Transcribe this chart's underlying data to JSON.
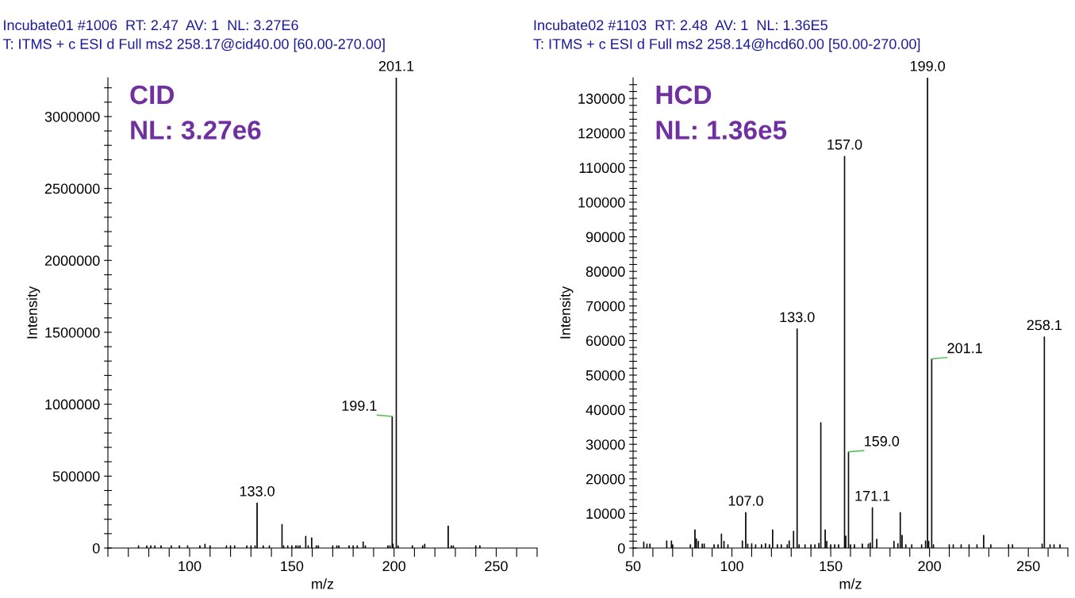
{
  "chart_data": [
    {
      "type": "bar",
      "title": "Incubate01 #1006  RT: 2.47  AV: 1  NL: 3.27E6",
      "subtitle": "T: ITMS + c ESI d Full ms2 258.17@cid40.00 [60.00-270.00]",
      "xlabel": "m/z",
      "ylabel": "Intensity",
      "annotations": [
        "CID",
        "NL: 3.27e6",
        {
          "text": "133.0",
          "x": 133.0,
          "y": 314000
        },
        {
          "text": "199.1",
          "x": 199.1,
          "y": 915000
        },
        {
          "text": "201.1",
          "x": 201.1,
          "y": 3270000
        }
      ],
      "x": [
        75,
        79,
        81,
        83,
        86,
        91,
        95,
        99,
        105,
        107.5,
        110,
        118,
        120,
        122,
        128,
        130,
        132,
        133.0,
        136,
        139,
        145.2,
        146,
        148,
        150,
        152,
        153,
        154,
        156.8,
        158,
        159.7,
        162,
        163,
        170,
        172,
        173,
        178,
        180,
        182,
        184.9,
        186,
        197,
        198,
        199.1,
        199.5,
        201.1,
        202,
        209,
        214,
        215,
        226.5,
        228,
        229,
        240,
        242
      ],
      "series": [
        {
          "color": "#000000",
          "values": [
            17000,
            17000,
            17000,
            17000,
            17000,
            17000,
            17000,
            17000,
            17000,
            28000,
            17000,
            17000,
            17000,
            17000,
            17000,
            17000,
            17000,
            314000,
            17000,
            17000,
            165000,
            17000,
            17000,
            17000,
            17000,
            17000,
            17000,
            83000,
            17000,
            72000,
            17000,
            17000,
            17000,
            17000,
            17000,
            17000,
            17000,
            17000,
            44000,
            17000,
            17000,
            17000,
            915000,
            28000,
            3270000,
            17000,
            17000,
            17000,
            28000,
            154000,
            17000,
            17000,
            17000,
            17000
          ],
          "name": null
        }
      ],
      "xlim": [
        60,
        270
      ],
      "xticks": [
        {
          "value": 60,
          "label": null
        },
        {
          "value": 70,
          "label": null
        },
        {
          "value": 80,
          "label": null
        },
        {
          "value": 90,
          "label": null
        },
        100,
        {
          "value": 110,
          "label": null
        },
        {
          "value": 120,
          "label": null
        },
        {
          "value": 130,
          "label": null
        },
        {
          "value": 140,
          "label": null
        },
        150,
        {
          "value": 160,
          "label": null
        },
        {
          "value": 170,
          "label": null
        },
        {
          "value": 180,
          "label": null
        },
        {
          "value": 190,
          "label": null
        },
        200,
        {
          "value": 210,
          "label": null
        },
        {
          "value": 220,
          "label": null
        },
        {
          "value": 230,
          "label": null
        },
        {
          "value": 240,
          "label": null
        },
        250,
        {
          "value": 260,
          "label": null
        },
        {
          "value": 270,
          "label": null
        }
      ],
      "ylim": [
        0,
        3270000
      ],
      "yticks": [
        0,
        {
          "value": 100000,
          "label": null
        },
        {
          "value": 200000,
          "label": null
        },
        {
          "value": 300000,
          "label": null
        },
        {
          "value": 400000,
          "label": null
        },
        500000,
        {
          "value": 600000,
          "label": null
        },
        {
          "value": 700000,
          "label": null
        },
        {
          "value": 800000,
          "label": null
        },
        {
          "value": 900000,
          "label": null
        },
        1000000,
        {
          "value": 1100000,
          "label": null
        },
        {
          "value": 1200000,
          "label": null
        },
        {
          "value": 1300000,
          "label": null
        },
        {
          "value": 1400000,
          "label": null
        },
        1500000,
        {
          "value": 1600000,
          "label": null
        },
        {
          "value": 1700000,
          "label": null
        },
        {
          "value": 1800000,
          "label": null
        },
        {
          "value": 1900000,
          "label": null
        },
        2000000,
        {
          "value": 2100000,
          "label": null
        },
        {
          "value": 2200000,
          "label": null
        },
        {
          "value": 2300000,
          "label": null
        },
        {
          "value": 2400000,
          "label": null
        },
        2500000,
        {
          "value": 2600000,
          "label": null
        },
        {
          "value": 2700000,
          "label": null
        },
        {
          "value": 2800000,
          "label": null
        },
        {
          "value": 2900000,
          "label": null
        },
        3000000,
        {
          "value": 3100000,
          "label": null
        },
        {
          "value": 3200000,
          "label": null
        }
      ],
      "grid": false,
      "legend": false
    },
    {
      "type": "bar",
      "title": "Incubate02 #1103  RT: 2.48  AV: 1  NL: 1.36E5",
      "subtitle": "T: ITMS + c ESI d Full ms2 258.14@hcd60.00 [50.00-270.00]",
      "xlabel": "m/z",
      "ylabel": "Intensity",
      "annotations": [
        "HCD",
        "NL: 1.36e5",
        {
          "text": "107.0",
          "x": 107.0,
          "y": 10300
        },
        {
          "text": "133.0",
          "x": 133.0,
          "y": 63400
        },
        {
          "text": "157.0",
          "x": 157.0,
          "y": 113300
        },
        {
          "text": "159.0",
          "x": 159.0,
          "y": 27800
        },
        {
          "text": "171.1",
          "x": 171.1,
          "y": 11700
        },
        {
          "text": "199.0",
          "x": 199.0,
          "y": 136000
        },
        {
          "text": "201.1",
          "x": 201.1,
          "y": 54700
        },
        {
          "text": "258.1",
          "x": 258.1,
          "y": 61100
        }
      ],
      "x": [
        55.4,
        57,
        58.5,
        67,
        69.4,
        70,
        79,
        81.3,
        82,
        83,
        85,
        86,
        91,
        93,
        94.7,
        96,
        98,
        105.3,
        107.0,
        108,
        110,
        112,
        115,
        117,
        119,
        120.6,
        123,
        125,
        128,
        129,
        131.2,
        133.0,
        134,
        137,
        140,
        142,
        144,
        145,
        147.2,
        148,
        150,
        152,
        154,
        157.0,
        157.6,
        159.0,
        160,
        162,
        166,
        169,
        170,
        171.1,
        173.3,
        182,
        184,
        185.2,
        186.1,
        188,
        191,
        196,
        198,
        199.0,
        199.6,
        201.1,
        202,
        210,
        212,
        216,
        220,
        224,
        227.4,
        231,
        240,
        242,
        257,
        258.1,
        261,
        263,
        266
      ],
      "series": [
        {
          "color": "#000000",
          "values": [
            1800,
            1200,
            1200,
            2100,
            2100,
            1000,
            1000,
            5300,
            2700,
            2000,
            1200,
            1200,
            1000,
            1000,
            4100,
            2000,
            1000,
            2100,
            10300,
            1200,
            1300,
            1000,
            1000,
            1300,
            1000,
            5300,
            1000,
            1000,
            1000,
            2100,
            4900,
            63400,
            1000,
            1000,
            1000,
            1000,
            1400,
            36300,
            5300,
            2000,
            1000,
            1000,
            1000,
            113300,
            3500,
            27800,
            1000,
            1000,
            1200,
            1200,
            1500,
            11700,
            2600,
            2000,
            1300,
            10300,
            3700,
            1000,
            1000,
            1000,
            2100,
            136000,
            2000,
            54700,
            1000,
            1000,
            1000,
            1000,
            1000,
            1000,
            3700,
            1000,
            1000,
            1000,
            1200,
            61100,
            1000,
            1000,
            1000
          ],
          "name": null
        }
      ],
      "xlim": [
        50,
        270
      ],
      "xticks": [
        50,
        {
          "value": 60,
          "label": null
        },
        {
          "value": 70,
          "label": null
        },
        {
          "value": 80,
          "label": null
        },
        {
          "value": 90,
          "label": null
        },
        100,
        {
          "value": 110,
          "label": null
        },
        {
          "value": 120,
          "label": null
        },
        {
          "value": 130,
          "label": null
        },
        {
          "value": 140,
          "label": null
        },
        150,
        {
          "value": 160,
          "label": null
        },
        {
          "value": 170,
          "label": null
        },
        {
          "value": 180,
          "label": null
        },
        {
          "value": 190,
          "label": null
        },
        200,
        {
          "value": 210,
          "label": null
        },
        {
          "value": 220,
          "label": null
        },
        {
          "value": 230,
          "label": null
        },
        {
          "value": 240,
          "label": null
        },
        250,
        {
          "value": 260,
          "label": null
        },
        {
          "value": 270,
          "label": null
        }
      ],
      "ylim": [
        0,
        136000
      ],
      "yticks": [
        0,
        {
          "value": 2000,
          "label": null
        },
        {
          "value": 4000,
          "label": null
        },
        {
          "value": 6000,
          "label": null
        },
        {
          "value": 8000,
          "label": null
        },
        10000,
        {
          "value": 12000,
          "label": null
        },
        {
          "value": 14000,
          "label": null
        },
        {
          "value": 16000,
          "label": null
        },
        {
          "value": 18000,
          "label": null
        },
        20000,
        {
          "value": 22000,
          "label": null
        },
        {
          "value": 24000,
          "label": null
        },
        {
          "value": 26000,
          "label": null
        },
        {
          "value": 28000,
          "label": null
        },
        30000,
        {
          "value": 32000,
          "label": null
        },
        {
          "value": 34000,
          "label": null
        },
        {
          "value": 36000,
          "label": null
        },
        {
          "value": 38000,
          "label": null
        },
        40000,
        {
          "value": 42000,
          "label": null
        },
        {
          "value": 44000,
          "label": null
        },
        {
          "value": 46000,
          "label": null
        },
        {
          "value": 48000,
          "label": null
        },
        50000,
        {
          "value": 52000,
          "label": null
        },
        {
          "value": 54000,
          "label": null
        },
        {
          "value": 56000,
          "label": null
        },
        {
          "value": 58000,
          "label": null
        },
        60000,
        {
          "value": 62000,
          "label": null
        },
        {
          "value": 64000,
          "label": null
        },
        {
          "value": 66000,
          "label": null
        },
        {
          "value": 68000,
          "label": null
        },
        70000,
        {
          "value": 72000,
          "label": null
        },
        {
          "value": 74000,
          "label": null
        },
        {
          "value": 76000,
          "label": null
        },
        {
          "value": 78000,
          "label": null
        },
        80000,
        {
          "value": 82000,
          "label": null
        },
        {
          "value": 84000,
          "label": null
        },
        {
          "value": 86000,
          "label": null
        },
        {
          "value": 88000,
          "label": null
        },
        90000,
        {
          "value": 92000,
          "label": null
        },
        {
          "value": 94000,
          "label": null
        },
        {
          "value": 96000,
          "label": null
        },
        {
          "value": 98000,
          "label": null
        },
        100000,
        {
          "value": 102000,
          "label": null
        },
        {
          "value": 104000,
          "label": null
        },
        {
          "value": 106000,
          "label": null
        },
        {
          "value": 108000,
          "label": null
        },
        110000,
        {
          "value": 112000,
          "label": null
        },
        {
          "value": 114000,
          "label": null
        },
        {
          "value": 116000,
          "label": null
        },
        {
          "value": 118000,
          "label": null
        },
        120000,
        {
          "value": 122000,
          "label": null
        },
        {
          "value": 124000,
          "label": null
        },
        {
          "value": 126000,
          "label": null
        },
        {
          "value": 128000,
          "label": null
        },
        130000,
        {
          "value": 132000,
          "label": null
        },
        {
          "value": 134000,
          "label": null
        }
      ],
      "grid": false,
      "legend": false
    }
  ]
}
